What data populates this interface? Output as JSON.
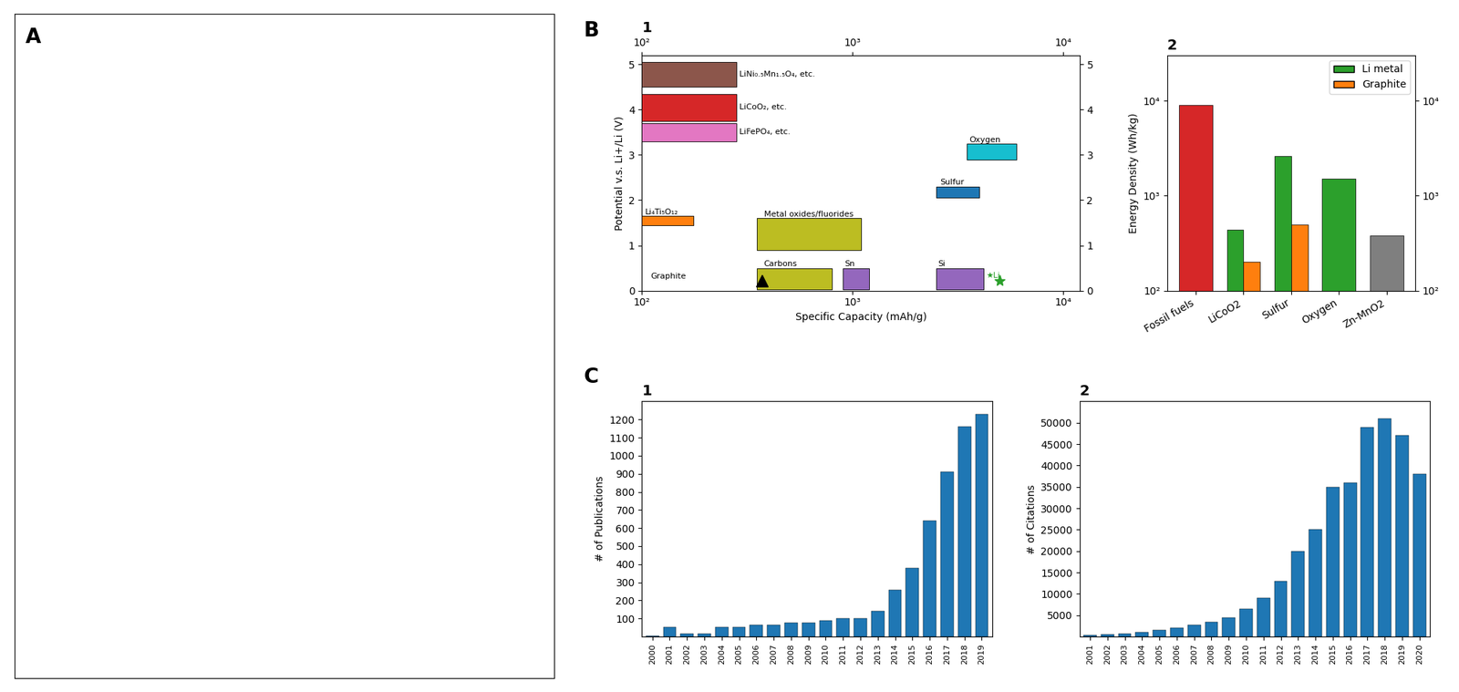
{
  "panel_labels": [
    "A",
    "B",
    "C"
  ],
  "chart_data": [
    {
      "type": "rectangles",
      "title": "1",
      "xlabel": "Specific Capacity (mAh/g)",
      "ylabel": "Potential v.s. Li+/Li (V)",
      "log": "x",
      "xlim": [
        100,
        12000
      ],
      "ylim": [
        0,
        5.2
      ],
      "xticks": [
        {
          "value": 100,
          "label": "10²"
        },
        {
          "value": 1000,
          "label": "10³"
        },
        {
          "value": 10000,
          "label": "10⁴"
        }
      ],
      "yticks": [
        0,
        1,
        2,
        3,
        4,
        5
      ],
      "rectangles": [
        {
          "x": [
            100,
            280
          ],
          "y": [
            4.5,
            5.05
          ],
          "color": "#8c564b"
        },
        {
          "x": [
            100,
            280
          ],
          "y": [
            3.75,
            4.35
          ],
          "color": "#d62728"
        },
        {
          "x": [
            100,
            280
          ],
          "y": [
            3.3,
            3.7
          ],
          "color": "#e377c2"
        },
        {
          "x": [
            100,
            175
          ],
          "y": [
            1.45,
            1.65
          ],
          "color": "#ff7f0e"
        },
        {
          "x": [
            350,
            1100
          ],
          "y": [
            0.9,
            1.6
          ],
          "color": "#bcbd22"
        },
        {
          "x": [
            350,
            800
          ],
          "y": [
            0.02,
            0.5
          ],
          "color": "#bcbd22"
        },
        {
          "x": [
            3500,
            6000
          ],
          "y": [
            2.9,
            3.25
          ],
          "color": "#17becf"
        },
        {
          "x": [
            2500,
            4000
          ],
          "y": [
            2.05,
            2.3
          ],
          "color": "#1f77b4"
        },
        {
          "x": [
            900,
            1200
          ],
          "y": [
            0.02,
            0.5
          ],
          "color": "#9467bd"
        },
        {
          "x": [
            2500,
            4200
          ],
          "y": [
            0.02,
            0.5
          ],
          "color": "#9467bd"
        }
      ],
      "points": [
        {
          "x": 372,
          "y": 0.22,
          "marker": "triangle",
          "color": "#000000"
        },
        {
          "x": 5000,
          "y": 0.22,
          "marker": "star",
          "color": "#2ca02c"
        }
      ],
      "annotations": [
        {
          "text": "LiNi₀.₅Mn₁.₅O₄, etc.",
          "x": 290,
          "y": 4.73
        },
        {
          "text": "LiCoO₂, etc.",
          "x": 290,
          "y": 4.0
        },
        {
          "text": "LiFePO₄, etc.",
          "x": 290,
          "y": 3.46
        },
        {
          "text": "Li₄Ti₅O₁₂",
          "x": 104,
          "y": 1.68
        },
        {
          "text": "Metal oxides/fluorides",
          "x": 380,
          "y": 1.63
        },
        {
          "text": "Carbons",
          "x": 380,
          "y": 0.54
        },
        {
          "text": "Graphite",
          "x": 110,
          "y": 0.26
        },
        {
          "text": "Oxygen",
          "x": 3600,
          "y": 3.28
        },
        {
          "text": "Sulfur",
          "x": 2600,
          "y": 2.35
        },
        {
          "text": "Sn",
          "x": 920,
          "y": 0.54
        },
        {
          "text": "Si",
          "x": 2550,
          "y": 0.54
        },
        {
          "text": "★Li",
          "x": 4300,
          "y": 0.28,
          "color": "#2ca02c"
        }
      ]
    },
    {
      "type": "bar",
      "title": "2",
      "ylabel": "Energy Density (Wh/kg)",
      "log": "y",
      "categories": [
        "Fossil fuels",
        "LiCoO2",
        "Sulfur",
        "Oxygen",
        "Zn-MnO2"
      ],
      "ylim": [
        100,
        30000
      ],
      "yticks": [
        {
          "value": 100,
          "label": "10²"
        },
        {
          "value": 1000,
          "label": "10³"
        },
        {
          "value": 10000,
          "label": "10⁴"
        }
      ],
      "series": [
        {
          "values": [
            9000,
            null,
            null,
            null,
            380
          ],
          "colors": [
            "#d62728",
            null,
            null,
            null,
            "#7f7f7f"
          ]
        },
        {
          "name": "Li metal",
          "color": "#2ca02c",
          "values": [
            null,
            440,
            2600,
            1500,
            null
          ]
        },
        {
          "name": "Graphite",
          "color": "#ff7f0e",
          "values": [
            null,
            200,
            500,
            null,
            null
          ]
        }
      ],
      "legend": "upper right"
    },
    {
      "type": "bar",
      "title": "1",
      "ylabel": "# of Publications",
      "categories": [
        "2000",
        "2001",
        "2002",
        "2003",
        "2004",
        "2005",
        "2006",
        "2007",
        "2008",
        "2009",
        "2010",
        "2011",
        "2012",
        "2013",
        "2014",
        "2015",
        "2016",
        "2017",
        "2018",
        "2019"
      ],
      "values": [
        5,
        52,
        18,
        18,
        52,
        52,
        65,
        65,
        75,
        75,
        90,
        100,
        100,
        140,
        260,
        380,
        640,
        910,
        1160,
        1230
      ],
      "color": "#1f77b4",
      "ylim": [
        0,
        1300
      ],
      "yticks": [
        100,
        200,
        300,
        400,
        500,
        600,
        700,
        800,
        900,
        1000,
        1100,
        1200
      ]
    },
    {
      "type": "bar",
      "title": "2",
      "ylabel": "# of Citations",
      "categories": [
        "2001",
        "2002",
        "2003",
        "2004",
        "2005",
        "2006",
        "2007",
        "2008",
        "2009",
        "2010",
        "2011",
        "2012",
        "2013",
        "2014",
        "2015",
        "2016",
        "2017",
        "2018",
        "2019",
        "2020"
      ],
      "values": [
        300,
        500,
        700,
        1000,
        1500,
        2000,
        2800,
        3500,
        4500,
        6500,
        9000,
        13000,
        20000,
        25000,
        35000,
        36000,
        49000,
        51000,
        47000,
        38000
      ],
      "color": "#1f77b4",
      "ylim": [
        0,
        55000
      ],
      "yticks": [
        5000,
        10000,
        15000,
        20000,
        25000,
        30000,
        35000,
        40000,
        45000,
        50000
      ]
    }
  ]
}
